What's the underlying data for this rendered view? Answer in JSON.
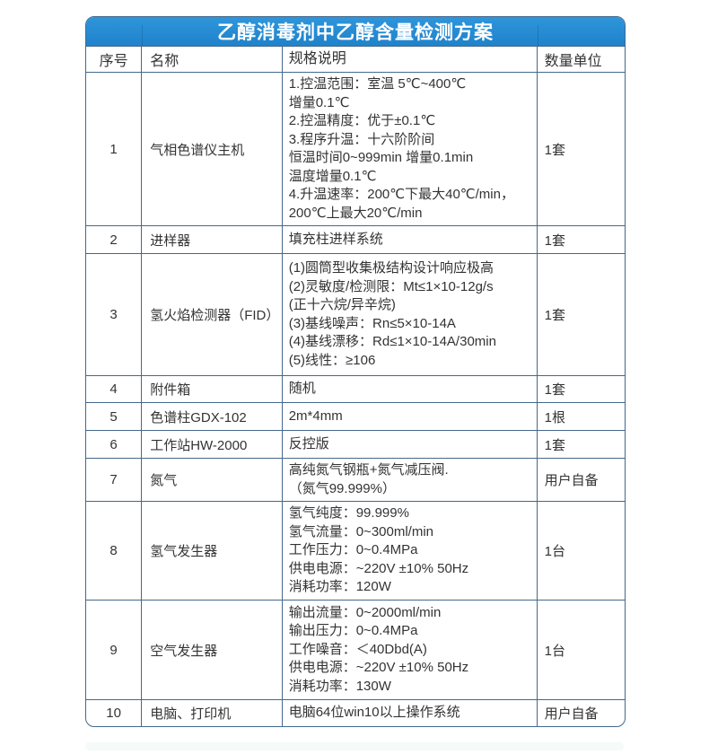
{
  "title": "乙醇消毒剂中乙醇含量检测方案",
  "columns": [
    "序号",
    "名称",
    "规格说明",
    "数量单位"
  ],
  "rows": [
    {
      "no": "1",
      "name": "气相色谱仪主机",
      "spec": "1.控温范围：室温 5℃~400℃\n增量0.1℃\n2.控温精度：优于±0.1℃\n3.程序升温：十六阶阶间\n恒温时间0~999min 增量0.1min\n温度增量0.1℃\n4.升温速率：200℃下最大40℃/min，\n200℃上最大20℃/min",
      "qty": "1套"
    },
    {
      "no": "2",
      "name": "进样器",
      "spec": "填充柱进样系统",
      "qty": "1套"
    },
    {
      "no": "3",
      "name": "氢火焰检测器（FID）",
      "spec": "(1)圆筒型收集极结构设计响应极高\n(2)灵敏度/检测限：Mt≤1×10-12g/s\n(正十六烷/异辛烷)\n(3)基线噪声：Rn≤5×10-14A\n(4)基线漂移：Rd≤1×10-14A/30min\n(5)线性：≥106",
      "qty": "1套"
    },
    {
      "no": "4",
      "name": "附件箱",
      "spec": "随机",
      "qty": "1套"
    },
    {
      "no": "5",
      "name": "色谱柱GDX-102",
      "spec": "2m*4mm",
      "qty": "1根"
    },
    {
      "no": "6",
      "name": "工作站HW-2000",
      "spec": "反控版",
      "qty": "1套"
    },
    {
      "no": "7",
      "name": "氮气",
      "spec": "高纯氮气钢瓶+氮气减压阀.\n（氮气99.999%）",
      "qty": "用户自备"
    },
    {
      "no": "8",
      "name": "氢气发生器",
      "spec": "氢气纯度：99.999%\n氢气流量：0~300ml/min\n工作压力：0~0.4MPa\n供电电源：~220V ±10% 50Hz\n消耗功率：120W",
      "qty": "1台"
    },
    {
      "no": "9",
      "name": "空气发生器",
      "spec": "输出流量：0~2000ml/min\n输出压力：0~0.4MPa\n工作噪音：＜40Dbd(A)\n供电电源：~220V ±10% 50Hz\n消耗功率：130W",
      "qty": "1台"
    },
    {
      "no": "10",
      "name": "电脑、打印机",
      "spec": "电脑64位win10以上操作系统",
      "qty": "用户自备"
    }
  ],
  "colors": {
    "header_blue": "#268bd2",
    "border": "#44688c",
    "text": "#333333",
    "title_text": "#ffffff"
  }
}
